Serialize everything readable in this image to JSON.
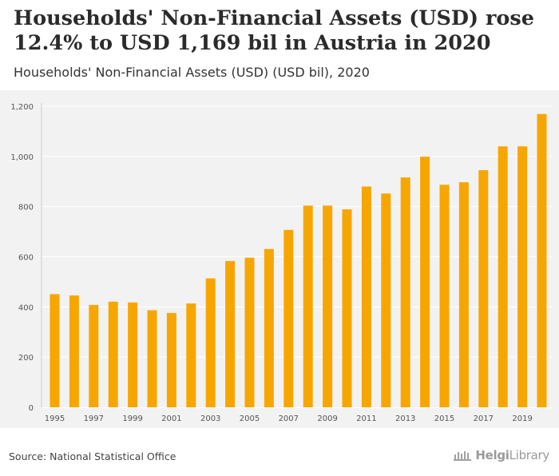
{
  "header": {
    "title": "Households' Non-Financial Assets (USD) rose 12.4% to USD 1,169 bil in Austria in 2020",
    "subtitle": "Households' Non-Financial Assets (USD) (USD bil), 2020"
  },
  "footer": {
    "source": "Source: National Statistical Office",
    "logo_bold": "Helgi",
    "logo_rest": "Library"
  },
  "colors": {
    "bar": "#f7a600",
    "plot_bg": "#f2f2f2",
    "grid": "#ffffff"
  },
  "chart_data": {
    "type": "bar",
    "title": "Households' Non-Financial Assets (USD) rose 12.4% to USD 1,169 bil in Austria in 2020",
    "subtitle": "Households' Non-Financial Assets (USD) (USD bil), 2020",
    "xlabel": "",
    "ylabel": "",
    "ylim": [
      0,
      1200
    ],
    "yticks": [
      0,
      200,
      400,
      600,
      800,
      1000,
      1200
    ],
    "ytick_labels": [
      "0",
      "200",
      "400",
      "600",
      "800",
      "1,000",
      "1,200"
    ],
    "categories": [
      "1995",
      "1996",
      "1997",
      "1998",
      "1999",
      "2000",
      "2001",
      "2002",
      "2003",
      "2004",
      "2005",
      "2006",
      "2007",
      "2008",
      "2009",
      "2010",
      "2011",
      "2012",
      "2013",
      "2014",
      "2015",
      "2016",
      "2017",
      "2018",
      "2019",
      "2020"
    ],
    "xtick_labels": [
      "1995",
      "1997",
      "1999",
      "2001",
      "2003",
      "2005",
      "2007",
      "2009",
      "2011",
      "2013",
      "2015",
      "2017",
      "2019"
    ],
    "values": [
      451,
      446,
      408,
      421,
      418,
      387,
      376,
      414,
      514,
      583,
      596,
      631,
      707,
      804,
      804,
      789,
      880,
      852,
      916,
      999,
      887,
      897,
      945,
      1040,
      1040,
      1169
    ],
    "grid": true,
    "legend": "none"
  }
}
